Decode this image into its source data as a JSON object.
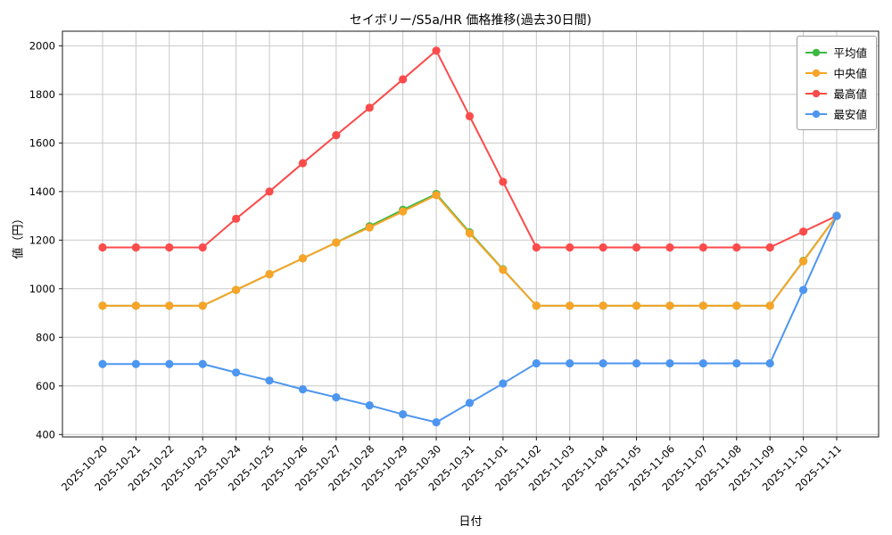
{
  "chart_data": {
    "type": "line",
    "title": "セイボリー/S5a/HR 価格推移(過去30日間)",
    "xlabel": "日付",
    "ylabel": "値（円）",
    "ylim": [
      400,
      2000
    ],
    "yticks": [
      400,
      600,
      800,
      1000,
      1200,
      1400,
      1600,
      1800,
      2000
    ],
    "grid": true,
    "legend_position": "upper right",
    "categories": [
      "2025-10-20",
      "2025-10-21",
      "2025-10-22",
      "2025-10-23",
      "2025-10-24",
      "2025-10-25",
      "2025-10-26",
      "2025-10-27",
      "2025-10-28",
      "2025-10-29",
      "2025-10-30",
      "2025-10-31",
      "2025-11-01",
      "2025-11-02",
      "2025-11-03",
      "2025-11-04",
      "2025-11-05",
      "2025-11-06",
      "2025-11-07",
      "2025-11-08",
      "2025-11-09",
      "2025-11-10",
      "2025-11-11"
    ],
    "series": [
      {
        "name": "平均値",
        "color": "#3db843",
        "values": [
          930,
          930,
          930,
          930,
          995,
          1060,
          1125,
          1190,
          1257,
          1325,
          1390,
          1232,
          1080,
          930,
          930,
          930,
          930,
          930,
          930,
          930,
          930,
          1115,
          1300
        ]
      },
      {
        "name": "中央値",
        "color": "#f7a428",
        "values": [
          930,
          930,
          930,
          930,
          995,
          1060,
          1125,
          1190,
          1252,
          1318,
          1385,
          1228,
          1078,
          930,
          930,
          930,
          930,
          930,
          930,
          930,
          930,
          1113,
          1300
        ]
      },
      {
        "name": "最高値",
        "color": "#fb4b4b",
        "values": [
          1170,
          1170,
          1170,
          1170,
          1288,
          1400,
          1517,
          1632,
          1745,
          1862,
          1980,
          1710,
          1440,
          1170,
          1170,
          1170,
          1170,
          1170,
          1170,
          1170,
          1170,
          1235,
          1300
        ]
      },
      {
        "name": "最安値",
        "color": "#4d96f0",
        "values": [
          690,
          690,
          690,
          690,
          655,
          622,
          586,
          553,
          520,
          483,
          450,
          530,
          610,
          693,
          693,
          693,
          693,
          693,
          693,
          693,
          693,
          995,
          1300
        ]
      }
    ],
    "colors": {
      "grid": "#c8c8c8",
      "axis_border": "#1a1a1a",
      "tick_text": "#000000"
    }
  }
}
